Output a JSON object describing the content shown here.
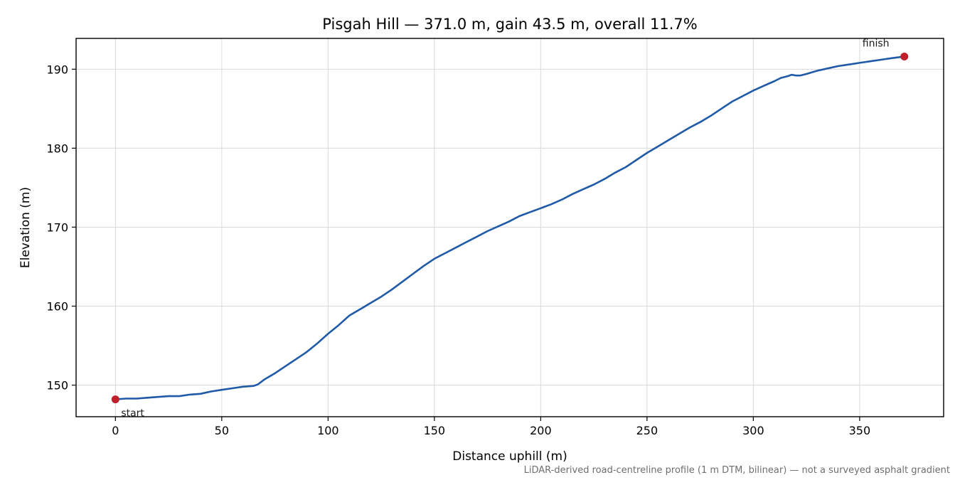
{
  "chart_data": {
    "type": "line",
    "title": "Pisgah Hill — 371.0 m, gain 43.5 m, overall 11.7%",
    "xlabel": "Distance uphill (m)",
    "ylabel": "Elevation (m)",
    "xlim": [
      -18.5,
      389.5
    ],
    "ylim": [
      146.0,
      193.9
    ],
    "xticks": [
      0,
      50,
      100,
      150,
      200,
      250,
      300,
      350
    ],
    "yticks": [
      150,
      160,
      170,
      180,
      190
    ],
    "grid": true,
    "footnote": "LiDAR-derived road-centreline profile (1 m DTM, bilinear) — not a surveyed asphalt gradient",
    "line_color": "#1f5aa8",
    "marker_color": "#c01f2c",
    "series": [
      {
        "x": [
          0,
          5,
          10,
          15,
          20,
          25,
          30,
          35,
          40,
          45,
          50,
          55,
          60,
          65,
          67,
          70,
          75,
          80,
          85,
          90,
          95,
          100,
          105,
          110,
          115,
          120,
          125,
          130,
          135,
          140,
          145,
          150,
          155,
          160,
          165,
          170,
          175,
          180,
          185,
          190,
          195,
          200,
          205,
          210,
          215,
          220,
          225,
          230,
          235,
          240,
          245,
          250,
          255,
          260,
          265,
          270,
          275,
          280,
          285,
          290,
          295,
          300,
          305,
          310,
          313,
          316,
          318,
          320,
          322,
          325,
          330,
          335,
          340,
          345,
          350,
          355,
          360,
          365,
          371
        ],
        "y": [
          148.2,
          148.3,
          148.3,
          148.4,
          148.5,
          148.6,
          148.6,
          148.8,
          148.9,
          149.2,
          149.4,
          149.6,
          149.8,
          149.9,
          150.1,
          150.7,
          151.5,
          152.4,
          153.3,
          154.2,
          155.3,
          156.5,
          157.6,
          158.8,
          159.6,
          160.4,
          161.2,
          162.1,
          163.1,
          164.1,
          165.1,
          166.0,
          166.7,
          167.4,
          168.1,
          168.8,
          169.5,
          170.1,
          170.7,
          171.4,
          171.9,
          172.4,
          172.9,
          173.5,
          174.2,
          174.8,
          175.4,
          176.1,
          176.9,
          177.6,
          178.5,
          179.4,
          180.2,
          181.0,
          181.8,
          182.6,
          183.3,
          184.1,
          185.0,
          185.9,
          186.6,
          187.3,
          187.9,
          188.5,
          188.9,
          189.1,
          189.3,
          189.2,
          189.2,
          189.4,
          189.8,
          190.1,
          190.4,
          190.6,
          190.8,
          191.0,
          191.2,
          191.4,
          191.6
        ]
      }
    ],
    "annotations": [
      {
        "text": "start",
        "x": 0,
        "y": 148.2
      },
      {
        "text": "finish",
        "x": 371,
        "y": 191.6
      }
    ]
  }
}
